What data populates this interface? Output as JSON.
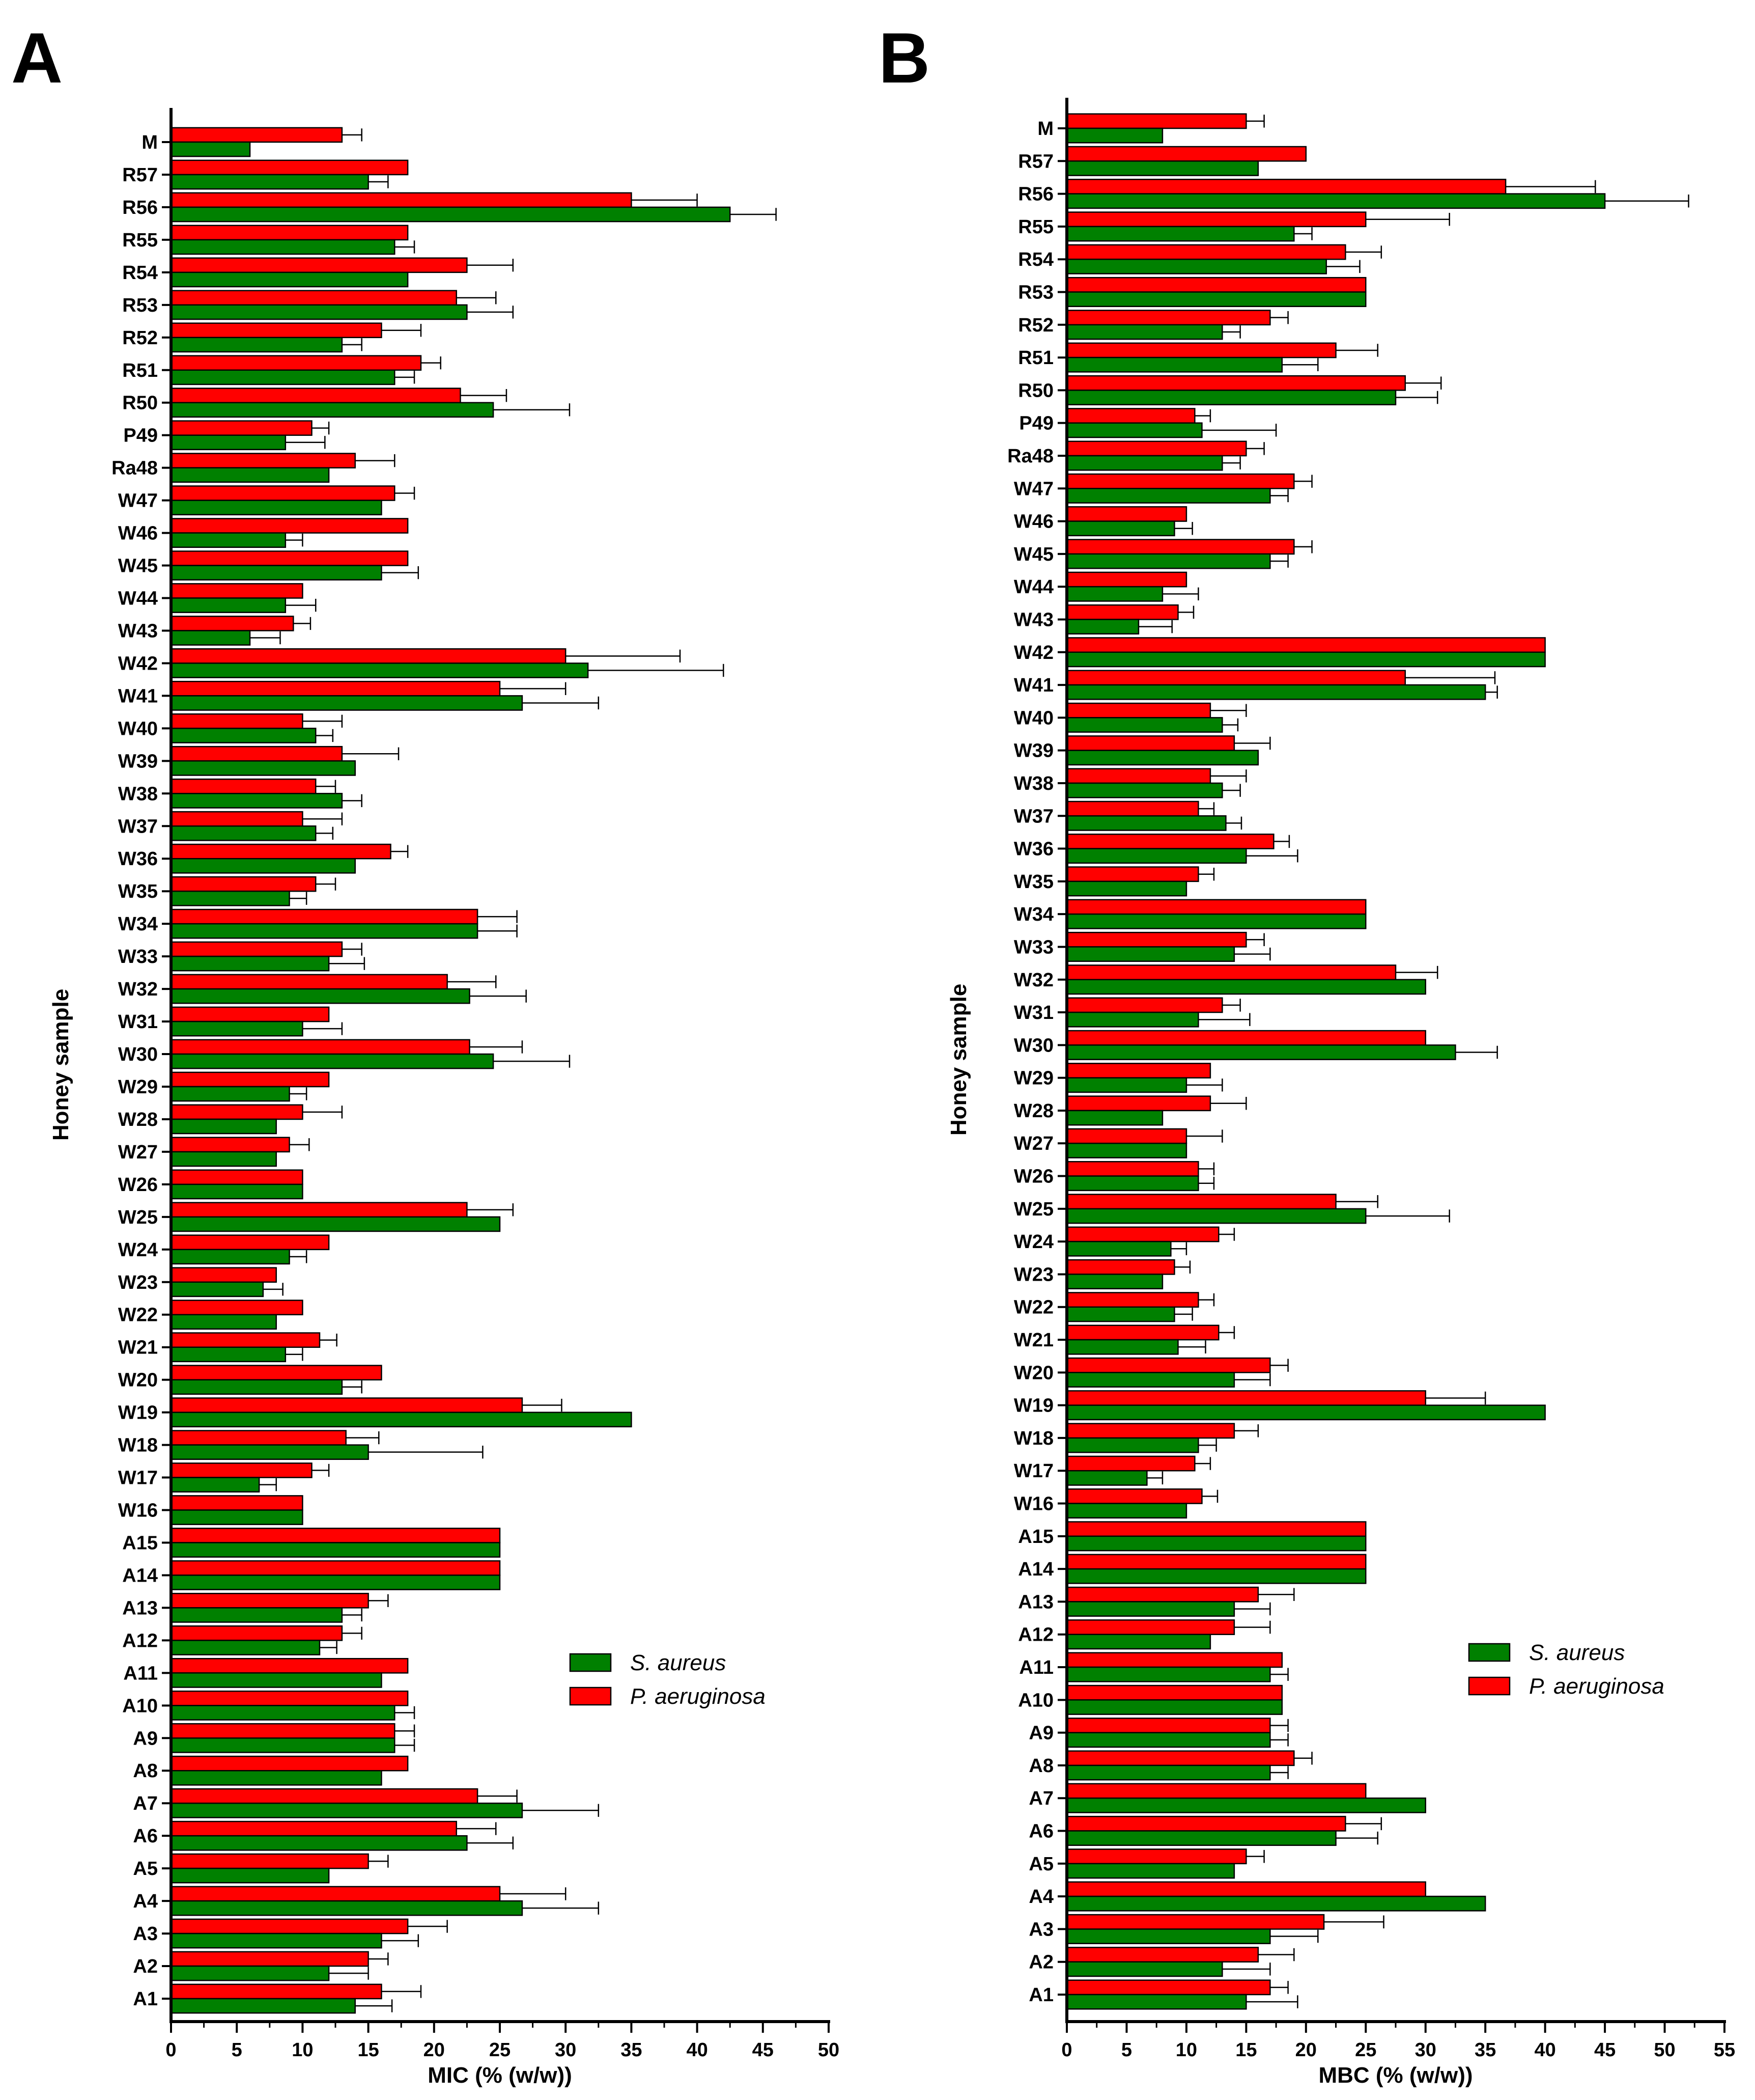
{
  "chart_data": [
    {
      "panel": "A",
      "type": "bar",
      "orientation": "horizontal",
      "xlabel": "MIC (% (w/w))",
      "ylabel": "Honey sample",
      "xlim": [
        0,
        50
      ],
      "xticks": [
        0,
        5,
        10,
        15,
        20,
        25,
        30,
        35,
        40,
        45,
        50
      ],
      "categories": [
        "M",
        "R57",
        "R56",
        "R55",
        "R54",
        "R53",
        "R52",
        "R51",
        "R50",
        "P49",
        "Ra48",
        "W47",
        "W46",
        "W45",
        "W44",
        "W43",
        "W42",
        "W41",
        "W40",
        "W39",
        "W38",
        "W37",
        "W36",
        "W35",
        "W34",
        "W33",
        "W32",
        "W31",
        "W30",
        "W29",
        "W28",
        "W27",
        "W26",
        "W25",
        "W24",
        "W23",
        "W22",
        "W21",
        "W20",
        "W19",
        "W18",
        "W17",
        "W16",
        "A15",
        "A14",
        "A13",
        "A12",
        "A11",
        "A10",
        "A9",
        "A8",
        "A7",
        "A6",
        "A5",
        "A4",
        "A3",
        "A2",
        "A1"
      ],
      "series": [
        {
          "name": "P. aeruginosa",
          "color": "#ff0000",
          "values": [
            13,
            18,
            35,
            18,
            22.5,
            21.7,
            16,
            19,
            22,
            10.7,
            14,
            17,
            18,
            18,
            10,
            9.3,
            30,
            25,
            10,
            13,
            11,
            10,
            16.7,
            11,
            23.3,
            13,
            21,
            12,
            22.7,
            12,
            10,
            9,
            10,
            22.5,
            12,
            8,
            10,
            11.3,
            16,
            26.7,
            13.3,
            10.7,
            10,
            25,
            25,
            15,
            13,
            18,
            18,
            17,
            18,
            23.3,
            21.7,
            15,
            25,
            18,
            15,
            16
          ],
          "errors": [
            1.5,
            0,
            5,
            0,
            3.5,
            3,
            3,
            1.5,
            3.5,
            1.3,
            3,
            1.5,
            0,
            0,
            0,
            1.3,
            8.7,
            5,
            3,
            4.3,
            1.5,
            3,
            1.3,
            1.5,
            3,
            1.5,
            3.7,
            0,
            4,
            0,
            3,
            1.5,
            0,
            3.5,
            0,
            0,
            0,
            1.3,
            0,
            3,
            2.5,
            1.3,
            0,
            0,
            0,
            1.5,
            1.5,
            0,
            0,
            1.5,
            0,
            3,
            3,
            1.5,
            5,
            3,
            1.5,
            3
          ]
        },
        {
          "name": "S. aureus",
          "color": "#008000",
          "values": [
            6,
            15,
            42.5,
            17,
            18,
            22.5,
            13,
            17,
            24.5,
            8.7,
            12,
            16,
            8.7,
            16,
            8.7,
            6,
            31.7,
            26.7,
            11,
            14,
            13,
            11,
            14,
            9,
            23.3,
            12,
            22.7,
            10,
            24.5,
            9,
            8,
            8,
            10,
            25,
            9,
            7,
            8,
            8.7,
            13,
            35,
            15,
            6.7,
            10,
            25,
            25,
            13,
            11.3,
            16,
            17,
            17,
            16,
            26.7,
            22.5,
            12,
            26.7,
            16,
            12,
            14
          ],
          "errors": [
            0,
            1.5,
            3.5,
            1.5,
            0,
            3.5,
            1.5,
            1.5,
            5.8,
            3,
            0,
            0,
            1.3,
            2.8,
            2.3,
            2.3,
            10.3,
            5.8,
            1.3,
            0,
            1.5,
            1.3,
            0,
            1.3,
            3,
            2.7,
            4.3,
            3,
            5.8,
            1.3,
            0,
            0,
            0,
            0,
            1.3,
            1.5,
            0,
            1.3,
            1.5,
            0,
            8.7,
            1.3,
            0,
            0,
            0,
            1.5,
            1.3,
            0,
            1.5,
            1.5,
            0,
            5.8,
            3.5,
            0,
            5.8,
            2.8,
            3,
            2.8
          ]
        }
      ],
      "legend": {
        "position": "lower-right",
        "entries": [
          "S. aureus",
          "P. aeruginosa"
        ]
      }
    },
    {
      "panel": "B",
      "type": "bar",
      "orientation": "horizontal",
      "xlabel": "MBC (% (w/w))",
      "ylabel": "Honey sample",
      "xlim": [
        0,
        55
      ],
      "xticks": [
        0,
        5,
        10,
        15,
        20,
        25,
        30,
        35,
        40,
        45,
        50,
        55
      ],
      "categories": [
        "M",
        "R57",
        "R56",
        "R55",
        "R54",
        "R53",
        "R52",
        "R51",
        "R50",
        "P49",
        "Ra48",
        "W47",
        "W46",
        "W45",
        "W44",
        "W43",
        "W42",
        "W41",
        "W40",
        "W39",
        "W38",
        "W37",
        "W36",
        "W35",
        "W34",
        "W33",
        "W32",
        "W31",
        "W30",
        "W29",
        "W28",
        "W27",
        "W26",
        "W25",
        "W24",
        "W23",
        "W22",
        "W21",
        "W20",
        "W19",
        "W18",
        "W17",
        "W16",
        "A15",
        "A14",
        "A13",
        "A12",
        "A11",
        "A10",
        "A9",
        "A8",
        "A7",
        "A6",
        "A5",
        "A4",
        "A3",
        "A2",
        "A1"
      ],
      "series": [
        {
          "name": "P. aeruginosa",
          "color": "#ff0000",
          "values": [
            15,
            20,
            36.7,
            25,
            23.3,
            25,
            17,
            22.5,
            28.3,
            10.7,
            15,
            19,
            10,
            19,
            10,
            9.3,
            40,
            28.3,
            12,
            14,
            12,
            11,
            17.3,
            11,
            25,
            15,
            27.5,
            13,
            30,
            12,
            12,
            10,
            11,
            22.5,
            12.7,
            9,
            11,
            12.7,
            17,
            30,
            14,
            10.7,
            11.3,
            25,
            25,
            16,
            14,
            18,
            18,
            17,
            19,
            25,
            23.3,
            15,
            30,
            21.5,
            16,
            17
          ],
          "errors": [
            1.5,
            0,
            7.5,
            7,
            3,
            0,
            1.5,
            3.5,
            3,
            1.3,
            1.5,
            1.5,
            0,
            1.5,
            0,
            1.3,
            0,
            7.5,
            3,
            3,
            3,
            1.3,
            1.3,
            1.3,
            0,
            1.5,
            3.5,
            1.5,
            0,
            0,
            3,
            3,
            1.3,
            3.5,
            1.3,
            1.3,
            1.3,
            1.3,
            1.5,
            5,
            2,
            1.3,
            1.3,
            0,
            0,
            3,
            3,
            0,
            0,
            1.5,
            1.5,
            0,
            3,
            1.5,
            0,
            5,
            3,
            1.5
          ]
        },
        {
          "name": "S. aureus",
          "color": "#008000",
          "values": [
            8,
            16,
            45,
            19,
            21.7,
            25,
            13,
            18,
            27.5,
            11.3,
            13,
            17,
            9,
            17,
            8,
            6,
            40,
            35,
            13,
            16,
            13,
            13.3,
            15,
            10,
            25,
            14,
            30,
            11,
            32.5,
            10,
            8,
            10,
            11,
            25,
            8.7,
            8,
            9,
            9.3,
            14,
            40,
            11,
            6.7,
            10,
            25,
            25,
            14,
            12,
            17,
            18,
            17,
            17,
            30,
            22.5,
            14,
            35,
            17,
            13,
            15
          ],
          "errors": [
            0,
            0,
            7,
            1.5,
            2.8,
            0,
            1.5,
            3,
            3.5,
            6.2,
            1.5,
            1.5,
            1.5,
            1.5,
            3,
            2.8,
            0,
            1,
            1.3,
            0,
            1.5,
            1.3,
            4.3,
            0,
            0,
            3,
            0,
            4.3,
            3.5,
            3,
            0,
            0,
            1.3,
            7,
            1.3,
            0,
            1.5,
            2.3,
            3,
            0,
            1.5,
            1.3,
            0,
            0,
            0,
            3,
            0,
            1.5,
            0,
            1.5,
            1.5,
            0,
            3.5,
            0,
            0,
            4,
            4,
            4.3
          ]
        }
      ],
      "legend": {
        "position": "lower-right",
        "entries": [
          "S. aureus",
          "P. aeruginosa"
        ]
      }
    }
  ]
}
